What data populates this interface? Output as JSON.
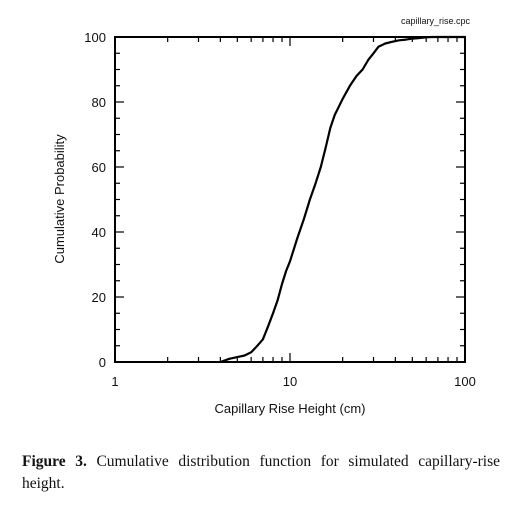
{
  "chart_data": {
    "type": "line",
    "file_label": "capillary_rise.cpc",
    "xlabel": "Capillary Rise Height (cm)",
    "ylabel": "Cumulative Probability",
    "x_scale": "log",
    "xlim": [
      1,
      100
    ],
    "ylim": [
      0,
      100
    ],
    "x_ticks": [
      1,
      10,
      100
    ],
    "y_ticks": [
      0,
      20,
      40,
      60,
      80,
      100
    ],
    "grid": false,
    "series": [
      {
        "x": [
          4.0,
          4.5,
          5.0,
          5.5,
          6.0,
          6.5,
          7.0,
          7.5,
          8.0,
          8.5,
          9.0,
          9.5,
          10.0,
          11.0,
          12.0,
          13.0,
          14.0,
          15.0,
          16.0,
          17.0,
          18.0,
          20.0,
          22.0,
          24.0,
          26.0,
          28.0,
          30.0,
          32.0,
          35.0,
          38.0,
          42.0,
          46.0,
          50.0,
          55.0,
          60.0,
          65.0,
          70.0,
          100.0
        ],
        "y": [
          0,
          1,
          1.5,
          2,
          3,
          5,
          7,
          11,
          15,
          19,
          24,
          28,
          31,
          38,
          44,
          50,
          55,
          60,
          66,
          72,
          76,
          81,
          85,
          88,
          90,
          93,
          95,
          97,
          98,
          98.5,
          99,
          99.2,
          99.5,
          99.7,
          99.9,
          100,
          100,
          100
        ],
        "color": "#000000"
      }
    ]
  },
  "caption": {
    "label": "Figure 3.",
    "text": " Cumulative distribution function for simulated capillary-rise height."
  }
}
